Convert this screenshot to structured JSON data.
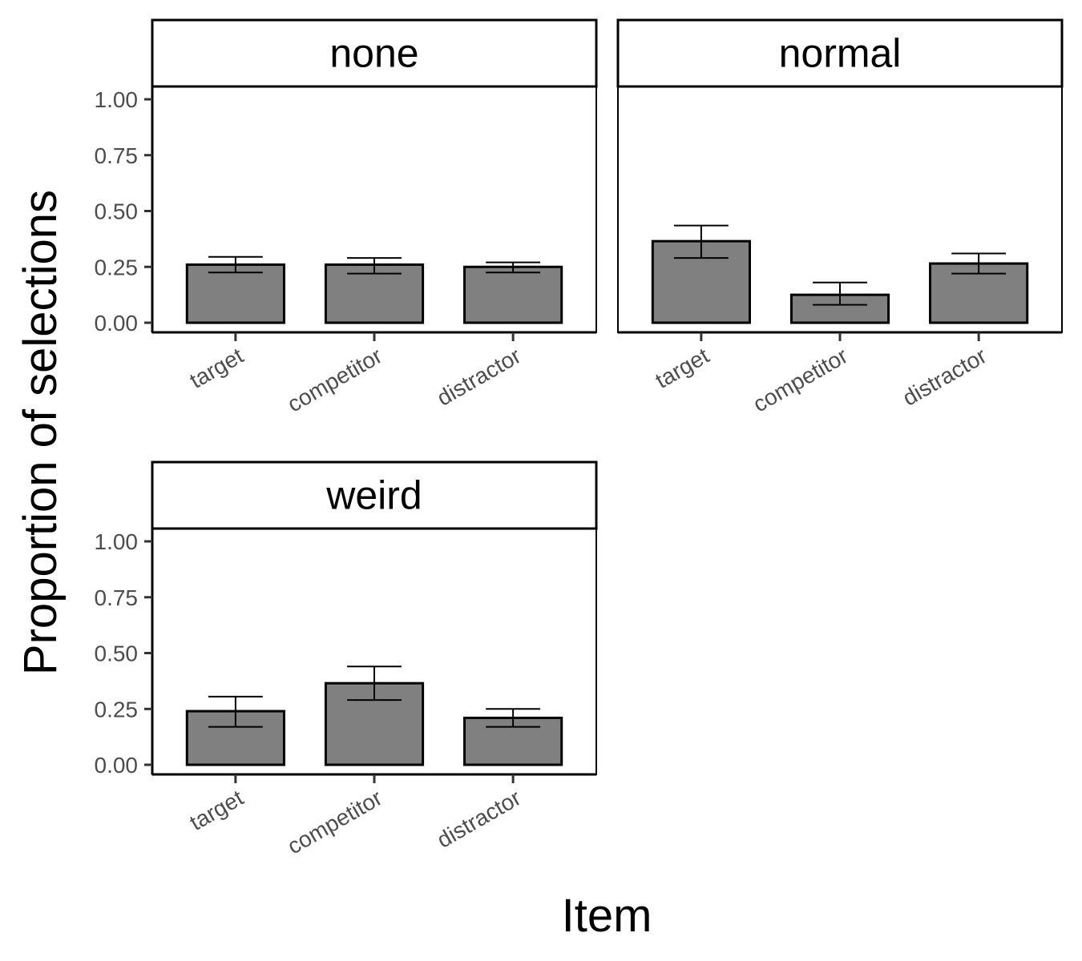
{
  "chart_data": {
    "type": "bar",
    "xlabel": "Item",
    "ylabel": "Proportion of selections",
    "ylim": [
      0,
      1
    ],
    "yticks": [
      "0.00",
      "0.25",
      "0.50",
      "0.75",
      "1.00"
    ],
    "categories": [
      "target",
      "competitor",
      "distractor"
    ],
    "bar_color": "#808080",
    "bar_outline_color": "#000000",
    "grid": false,
    "facets": [
      {
        "name": "none",
        "values": [
          0.26,
          0.26,
          0.25
        ],
        "error_low": [
          0.225,
          0.22,
          0.225
        ],
        "error_high": [
          0.295,
          0.29,
          0.27
        ]
      },
      {
        "name": "normal",
        "values": [
          0.365,
          0.125,
          0.265
        ],
        "error_low": [
          0.29,
          0.08,
          0.22
        ],
        "error_high": [
          0.435,
          0.18,
          0.31
        ]
      },
      {
        "name": "weird",
        "values": [
          0.24,
          0.365,
          0.21
        ],
        "error_low": [
          0.17,
          0.29,
          0.17
        ],
        "error_high": [
          0.305,
          0.44,
          0.25
        ]
      }
    ]
  }
}
